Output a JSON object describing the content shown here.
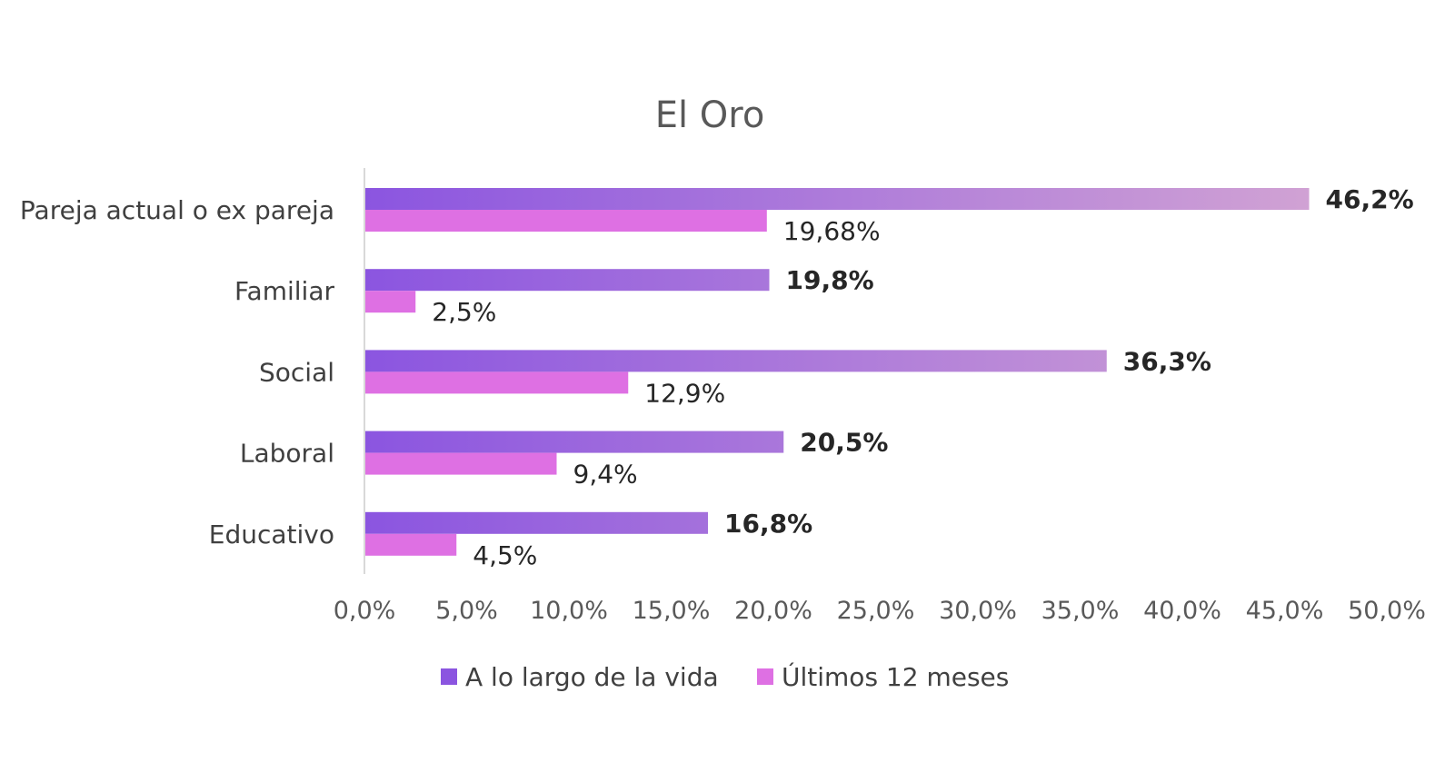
{
  "chart_data": {
    "type": "bar",
    "orientation": "horizontal",
    "title": "El Oro",
    "categories": [
      "Pareja actual o ex pareja",
      "Familiar",
      "Social",
      "Laboral",
      "Educativo"
    ],
    "series": [
      {
        "name": "A lo largo de la vida",
        "values": [
          46.2,
          19.8,
          36.3,
          20.5,
          16.8
        ],
        "labels": [
          "46,2%",
          "19,8%",
          "36,3%",
          "20,5%",
          "16,8%"
        ],
        "color": "#8B55E0",
        "gradient_end": "#D6A8D3"
      },
      {
        "name": "Últimos 12 meses",
        "values": [
          19.68,
          2.5,
          12.9,
          9.4,
          4.5
        ],
        "labels": [
          "19,68%",
          "2,5%",
          "12,9%",
          "9,4%",
          "4,5%"
        ],
        "color": "#DE70E3"
      }
    ],
    "xlim": [
      0,
      50
    ],
    "xticks": [
      0,
      5,
      10,
      15,
      20,
      25,
      30,
      35,
      40,
      45,
      50
    ],
    "xtick_labels": [
      "0,0%",
      "5,0%",
      "10,0%",
      "15,0%",
      "20,0%",
      "25,0%",
      "30,0%",
      "35,0%",
      "40,0%",
      "45,0%",
      "50,0%"
    ],
    "grid": false,
    "legend_position": "bottom",
    "axis_color": "#D9D9D9"
  }
}
